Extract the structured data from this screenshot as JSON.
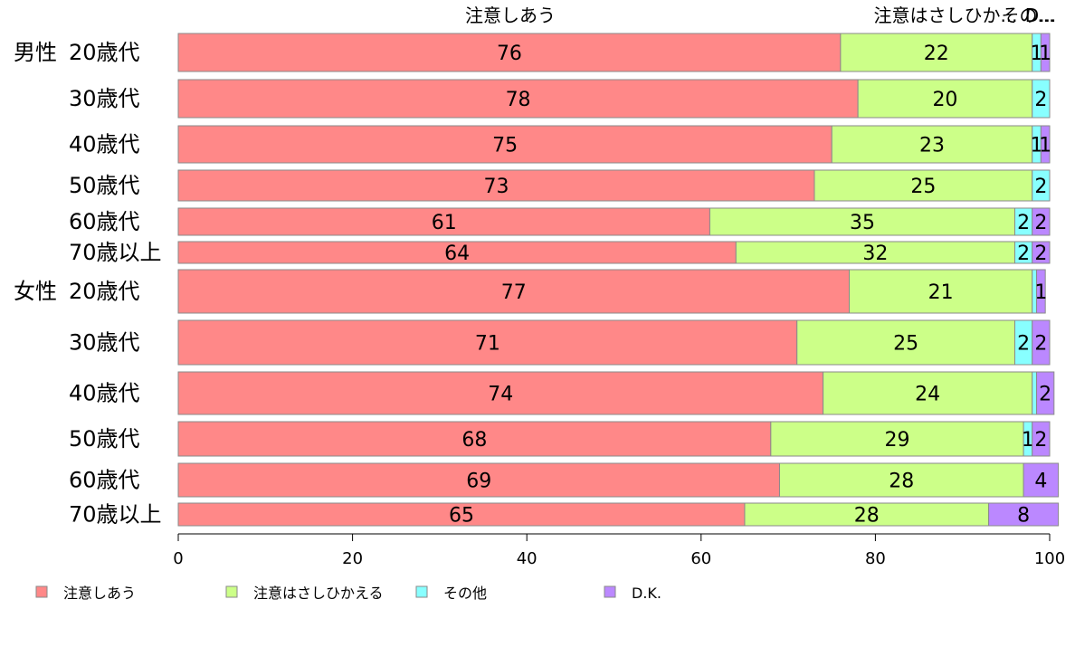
{
  "chart_data": {
    "type": "bar",
    "orientation": "horizontal",
    "stacked": true,
    "percent": true,
    "xlim": [
      0,
      100
    ],
    "x_ticks": [
      "0",
      "20",
      "40",
      "60",
      "80",
      "100"
    ],
    "grid": false,
    "legend_position": "bottom",
    "top_labels": [
      "注意しあう",
      "注意はさしひか...",
      "その...",
      "D..."
    ],
    "groups": [
      {
        "label": "男性",
        "rows": [
          "20歳代",
          "30歳代",
          "40歳代",
          "50歳代",
          "60歳代",
          "70歳以上"
        ]
      },
      {
        "label": "女性",
        "rows": [
          "20歳代",
          "30歳代",
          "40歳代",
          "50歳代",
          "60歳代",
          "70歳以上"
        ]
      }
    ],
    "series": [
      {
        "name": "注意しあう",
        "color": "#FF8888",
        "values": [
          76,
          78,
          75,
          73,
          61,
          64,
          77,
          71,
          74,
          68,
          69,
          65
        ],
        "labels": [
          "76",
          "78",
          "75",
          "73",
          "61",
          "64",
          "77",
          "71",
          "74",
          "68",
          "69",
          "65"
        ]
      },
      {
        "name": "注意はさしひかえる",
        "color": "#CCFF88",
        "values": [
          22,
          20,
          23,
          25,
          35,
          32,
          21,
          25,
          24,
          29,
          28,
          28
        ],
        "labels": [
          "22",
          "20",
          "23",
          "25",
          "35",
          "32",
          "21",
          "25",
          "24",
          "29",
          "28",
          "28"
        ]
      },
      {
        "name": "その他",
        "color": "#88FFFF",
        "values": [
          1,
          2,
          1,
          2,
          2,
          2,
          0.5,
          2,
          0.5,
          1,
          0,
          0
        ],
        "labels": [
          "1",
          "2",
          "1",
          "2",
          "2",
          "2",
          "",
          "2",
          "",
          "1",
          "",
          ""
        ]
      },
      {
        "name": "D.K.",
        "color": "#BB88FF",
        "values": [
          1,
          0,
          1,
          0,
          2,
          2,
          1,
          2,
          2,
          2,
          4,
          8
        ],
        "labels": [
          "1",
          "",
          "1",
          "",
          "2",
          "2",
          "1",
          "2",
          "2",
          "2",
          "4",
          "8"
        ]
      }
    ]
  }
}
